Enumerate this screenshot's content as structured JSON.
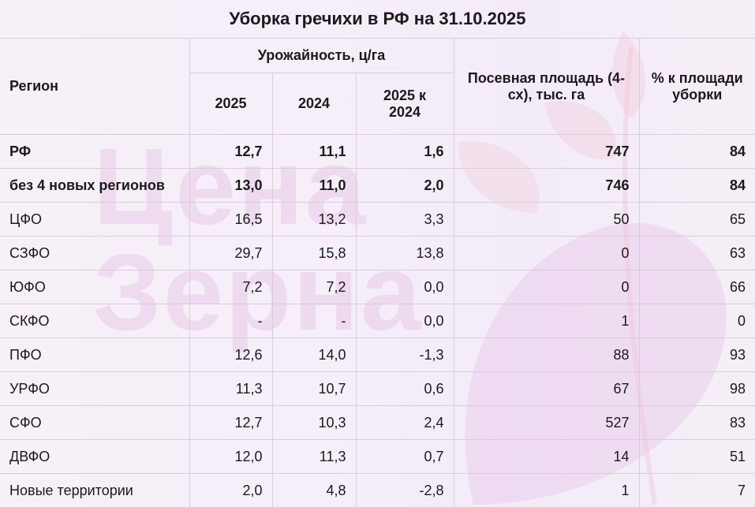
{
  "title": "Уборка гречихи в РФ на 31.10.2025",
  "watermark": [
    "Цена",
    "Зерна"
  ],
  "headers": {
    "region": "Регион",
    "yield_group": "Урожайность, ц/га",
    "y2025": "2025",
    "y2024": "2024",
    "diff": "2025 к 2024",
    "area": "Посевная площадь (4-сх), тыс. га",
    "harvest_pct": "% к площади уборки"
  },
  "rows": [
    {
      "region": "РФ",
      "y2025": "12,7",
      "y2024": "11,1",
      "diff": "1,6",
      "area": "747",
      "pct": "84",
      "bold": true
    },
    {
      "region": "без 4 новых регионов",
      "y2025": "13,0",
      "y2024": "11,0",
      "diff": "2,0",
      "area": "746",
      "pct": "84",
      "bold": true
    },
    {
      "region": "ЦФО",
      "y2025": "16,5",
      "y2024": "13,2",
      "diff": "3,3",
      "area": "50",
      "pct": "65"
    },
    {
      "region": "СЗФО",
      "y2025": "29,7",
      "y2024": "15,8",
      "diff": "13,8",
      "area": "0",
      "pct": "63"
    },
    {
      "region": "ЮФО",
      "y2025": "7,2",
      "y2024": "7,2",
      "diff": "0,0",
      "area": "0",
      "pct": "66"
    },
    {
      "region": "СКФО",
      "y2025": "-",
      "y2024": "-",
      "diff": "0,0",
      "area": "1",
      "pct": "0"
    },
    {
      "region": "ПФО",
      "y2025": "12,6",
      "y2024": "14,0",
      "diff": "-1,3",
      "area": "88",
      "pct": "93"
    },
    {
      "region": "УРФО",
      "y2025": "11,3",
      "y2024": "10,7",
      "diff": "0,6",
      "area": "67",
      "pct": "98"
    },
    {
      "region": "СФО",
      "y2025": "12,7",
      "y2024": "10,3",
      "diff": "2,4",
      "area": "527",
      "pct": "83"
    },
    {
      "region": "ДВФО",
      "y2025": "12,0",
      "y2024": "11,3",
      "diff": "0,7",
      "area": "14",
      "pct": "51"
    },
    {
      "region": "Новые территории",
      "y2025": "2,0",
      "y2024": "4,8",
      "diff": "-2,8",
      "area": "1",
      "pct": "7"
    }
  ]
}
